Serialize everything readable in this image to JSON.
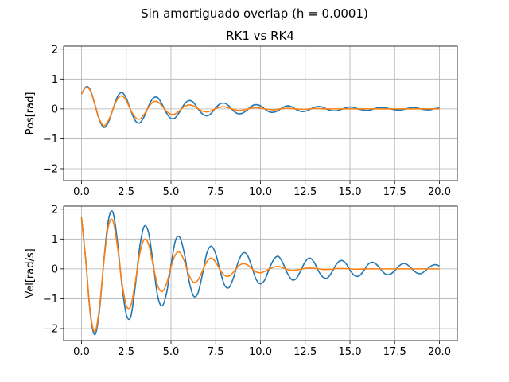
{
  "figure": {
    "suptitle": "Sin amortiguado overlap (h = 0.0001)"
  },
  "colors": {
    "rk1": "#1f77b4",
    "rk4": "#ff7f0e"
  },
  "chart_data": [
    {
      "type": "line",
      "title": "RK1 vs RK4",
      "xlabel": "",
      "ylabel": "Pos[rad]",
      "xlim": [
        -1.0,
        21.0
      ],
      "ylim": [
        -2.4,
        2.1
      ],
      "xticks": [
        "0.0",
        "2.5",
        "5.0",
        "7.5",
        "10.0",
        "12.5",
        "15.0",
        "17.5",
        "20.0"
      ],
      "yticks": [
        "−2",
        "−1",
        "0",
        "1",
        "2"
      ],
      "grid": true,
      "series": [
        {
          "x": [
            0,
            0.25,
            0.5,
            0.75,
            1,
            1.25,
            1.5,
            1.75,
            2,
            2.25,
            2.5,
            2.75,
            3,
            3.25,
            3.5,
            3.75,
            4,
            4.25,
            4.5,
            4.75,
            5,
            5.25,
            5.5,
            5.75,
            6,
            6.25,
            6.5,
            6.75,
            7,
            7.25,
            7.5,
            7.75,
            8,
            8.25,
            8.5,
            8.75,
            9,
            9.25,
            9.5,
            9.75,
            10,
            10.25,
            10.5,
            10.75,
            11,
            11.25,
            11.5,
            11.75,
            12,
            12.25,
            12.5,
            12.75,
            13,
            13.25,
            13.5,
            13.75,
            14,
            14.25,
            14.5,
            14.75,
            15,
            15.25,
            15.5,
            15.75,
            16,
            16.25,
            16.5,
            16.75,
            17,
            17.25,
            17.5,
            17.75,
            18,
            18.25,
            18.5,
            18.75,
            19,
            19.25,
            19.5,
            19.75,
            20
          ],
          "y": [
            0.5,
            0.74,
            0.63,
            0.14,
            -0.37,
            -0.62,
            -0.45,
            -0.02,
            0.4,
            0.55,
            0.36,
            -0.05,
            -0.39,
            -0.47,
            -0.26,
            0.1,
            0.36,
            0.38,
            0.16,
            -0.14,
            -0.32,
            -0.29,
            -0.08,
            0.16,
            0.28,
            0.22,
            0.01,
            -0.16,
            -0.23,
            -0.15,
            0.04,
            0.17,
            0.19,
            0.09,
            -0.07,
            -0.16,
            -0.14,
            -0.04,
            0.09,
            0.14,
            0.1,
            -0.01,
            -0.1,
            -0.11,
            -0.05,
            0.05,
            0.1,
            0.07,
            -0.02,
            -0.08,
            -0.08,
            -0.02,
            0.05,
            0.08,
            0.05,
            -0.02,
            -0.06,
            -0.06,
            -0.02,
            0.03,
            0.06,
            0.04,
            -0.01,
            -0.04,
            -0.05,
            -0.02,
            0.03,
            0.04,
            0.03,
            0,
            -0.03,
            -0.04,
            -0.02,
            0.02,
            0.04,
            0.03,
            -0.01,
            -0.03,
            -0.03,
            0.01,
            0.03
          ]
        },
        {
          "x": [
            0,
            0.25,
            0.5,
            0.75,
            1,
            1.25,
            1.5,
            1.75,
            2,
            2.25,
            2.5,
            2.75,
            3,
            3.25,
            3.5,
            3.75,
            4,
            4.25,
            4.5,
            4.75,
            5,
            5.25,
            5.5,
            5.75,
            6,
            6.25,
            6.5,
            6.75,
            7,
            7.25,
            7.5,
            7.75,
            8,
            8.25,
            8.5,
            8.75,
            9,
            9.25,
            9.5,
            9.75,
            10,
            10.25,
            10.5,
            10.75,
            11,
            11.25,
            11.5,
            11.75,
            12,
            12.25,
            12.5,
            12.75,
            13,
            13.25,
            13.5,
            13.75,
            14,
            14.25,
            14.5,
            14.75,
            15,
            15.25,
            15.5,
            15.75,
            16,
            16.25,
            16.5,
            16.75,
            17,
            17.25,
            17.5,
            17.75,
            18,
            18.25,
            18.5,
            18.75,
            19,
            19.25,
            19.5,
            19.75,
            20
          ],
          "y": [
            0.5,
            0.72,
            0.6,
            0.13,
            -0.34,
            -0.56,
            -0.39,
            -0.02,
            0.32,
            0.44,
            0.28,
            -0.04,
            -0.28,
            -0.34,
            -0.18,
            0.06,
            0.23,
            0.24,
            0.1,
            -0.08,
            -0.18,
            -0.16,
            -0.05,
            0.08,
            0.13,
            0.1,
            0.01,
            -0.07,
            -0.1,
            -0.06,
            0.01,
            0.06,
            0.07,
            0.03,
            -0.02,
            -0.05,
            -0.04,
            -0.01,
            0.03,
            0.04,
            0.02,
            0,
            -0.02,
            -0.03,
            -0.01,
            0.01,
            0.02,
            0.01,
            0,
            -0.01,
            -0.01,
            0,
            0.01,
            0.01,
            0,
            0,
            0,
            0,
            0,
            0,
            0,
            0,
            0,
            0,
            0,
            0,
            0,
            0,
            0,
            0,
            0,
            0,
            0,
            0,
            0,
            0,
            0,
            0,
            0,
            0,
            0
          ]
        }
      ]
    },
    {
      "type": "line",
      "title": "",
      "xlabel": "",
      "ylabel": "Vel[rad/s]",
      "xlim": [
        -1.0,
        21.0
      ],
      "ylim": [
        -2.4,
        2.1
      ],
      "xticks": [
        "0.0",
        "2.5",
        "5.0",
        "7.5",
        "10.0",
        "12.5",
        "15.0",
        "17.5",
        "20.0"
      ],
      "yticks": [
        "−2",
        "−1",
        "0",
        "1",
        "2"
      ],
      "grid": true,
      "series": [
        {
          "x": [
            0,
            0.25,
            0.5,
            0.75,
            1,
            1.25,
            1.5,
            1.75,
            2,
            2.25,
            2.5,
            2.75,
            3,
            3.25,
            3.5,
            3.75,
            4,
            4.25,
            4.5,
            4.75,
            5,
            5.25,
            5.5,
            5.75,
            6,
            6.25,
            6.5,
            6.75,
            7,
            7.25,
            7.5,
            7.75,
            8,
            8.25,
            8.5,
            8.75,
            9,
            9.25,
            9.5,
            9.75,
            10,
            10.25,
            10.5,
            10.75,
            11,
            11.25,
            11.5,
            11.75,
            12,
            12.25,
            12.5,
            12.75,
            13,
            13.25,
            13.5,
            13.75,
            14,
            14.25,
            14.5,
            14.75,
            15,
            15.25,
            15.5,
            15.75,
            16,
            16.25,
            16.5,
            16.75,
            17,
            17.25,
            17.5,
            17.75,
            18,
            18.25,
            18.5,
            18.75,
            19,
            19.25,
            19.5,
            19.75,
            20
          ],
          "y": [
            1.72,
            0.2,
            -1.55,
            -2.2,
            -1.4,
            0.28,
            1.62,
            1.9,
            0.95,
            -0.5,
            -1.52,
            -1.6,
            -0.6,
            0.72,
            1.42,
            1.2,
            0.2,
            -0.9,
            -1.24,
            -0.82,
            0.12,
            0.95,
            1.05,
            0.5,
            -0.38,
            -0.9,
            -0.82,
            -0.2,
            0.52,
            0.76,
            0.5,
            -0.08,
            -0.55,
            -0.62,
            -0.28,
            0.22,
            0.52,
            0.48,
            0.1,
            -0.34,
            -0.5,
            -0.36,
            0.02,
            0.32,
            0.42,
            0.2,
            -0.14,
            -0.36,
            -0.32,
            -0.06,
            0.24,
            0.36,
            0.22,
            -0.08,
            -0.28,
            -0.3,
            -0.1,
            0.16,
            0.28,
            0.2,
            -0.04,
            -0.22,
            -0.24,
            -0.08,
            0.14,
            0.22,
            0.14,
            -0.04,
            -0.18,
            -0.18,
            -0.06,
            0.1,
            0.18,
            0.12,
            -0.02,
            -0.14,
            -0.15,
            -0.04,
            0.08,
            0.14,
            0.1
          ]
        },
        {
          "x": [
            0,
            0.25,
            0.5,
            0.75,
            1,
            1.25,
            1.5,
            1.75,
            2,
            2.25,
            2.5,
            2.75,
            3,
            3.25,
            3.5,
            3.75,
            4,
            4.25,
            4.5,
            4.75,
            5,
            5.25,
            5.5,
            5.75,
            6,
            6.25,
            6.5,
            6.75,
            7,
            7.25,
            7.5,
            7.75,
            8,
            8.25,
            8.5,
            8.75,
            9,
            9.25,
            9.5,
            9.75,
            10,
            10.25,
            10.5,
            10.75,
            11,
            11.25,
            11.5,
            11.75,
            12,
            12.25,
            12.5,
            12.75,
            13,
            13.25,
            13.5,
            13.75,
            14,
            14.25,
            14.5,
            14.75,
            15,
            15.25,
            15.5,
            15.75,
            16,
            16.25,
            16.5,
            16.75,
            17,
            17.25,
            17.5,
            17.75,
            18,
            18.25,
            18.5,
            18.75,
            19,
            19.25,
            19.5,
            19.75,
            20
          ],
          "y": [
            1.72,
            0.2,
            -1.5,
            -2.1,
            -1.3,
            0.25,
            1.42,
            1.62,
            0.78,
            -0.42,
            -1.22,
            -1.24,
            -0.46,
            0.5,
            0.98,
            0.82,
            0.12,
            -0.55,
            -0.76,
            -0.5,
            0.06,
            0.48,
            0.55,
            0.25,
            -0.2,
            -0.44,
            -0.38,
            -0.08,
            0.24,
            0.36,
            0.22,
            -0.04,
            -0.22,
            -0.24,
            -0.1,
            0.08,
            0.17,
            0.14,
            0.02,
            -0.1,
            -0.13,
            -0.08,
            0,
            0.06,
            0.08,
            0.04,
            -0.02,
            -0.05,
            -0.04,
            -0.01,
            0.02,
            0.03,
            0.02,
            0,
            -0.02,
            -0.02,
            -0.01,
            0.01,
            0.01,
            0.01,
            0,
            -0.01,
            -0.01,
            0,
            0,
            0,
            0,
            0,
            0,
            0,
            0,
            0,
            0,
            0,
            0,
            0,
            0,
            0,
            0,
            0,
            0
          ]
        }
      ]
    }
  ]
}
